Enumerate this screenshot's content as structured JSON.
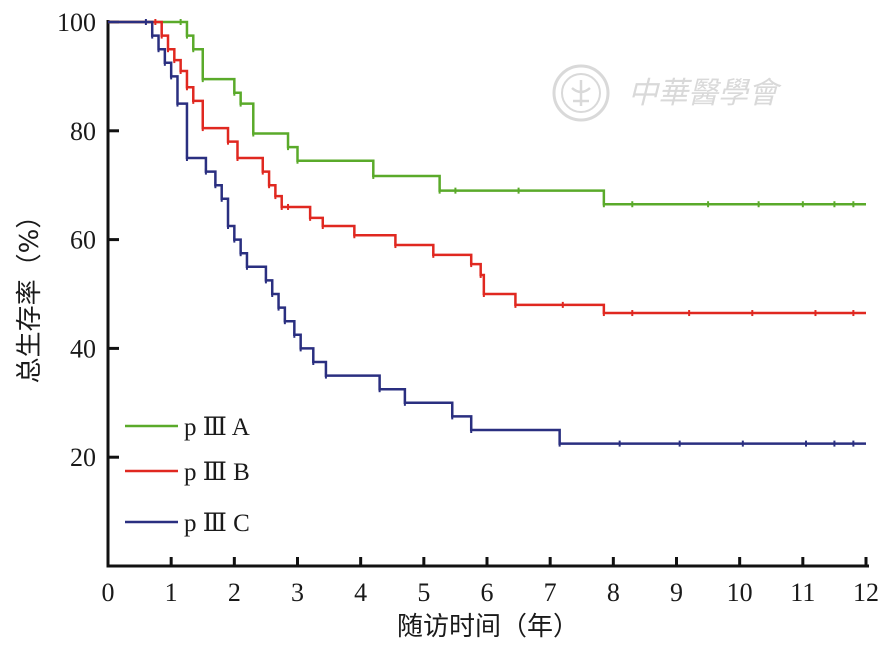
{
  "watermark": {
    "text": "中華醫學會"
  },
  "chart_data": {
    "type": "line",
    "title": "",
    "xlabel": "随访时间（年）",
    "ylabel": "总生存率（%）",
    "xlim": [
      0,
      12
    ],
    "ylim": [
      0,
      100
    ],
    "xticks": [
      0,
      1,
      2,
      3,
      4,
      5,
      6,
      7,
      8,
      9,
      10,
      11,
      12
    ],
    "yticks": [
      20,
      40,
      60,
      80,
      100
    ],
    "grid": false,
    "legend_position": "bottom-left",
    "series": [
      {
        "name": "p Ⅲ A",
        "color": "#5aaa2a",
        "x": [
          0,
          1.15,
          1.25,
          1.35,
          1.5,
          2.0,
          2.1,
          2.3,
          2.85,
          3.0,
          4.2,
          5.25,
          7.85,
          12
        ],
        "y": [
          100,
          100,
          97.5,
          95,
          89.5,
          87,
          85,
          79.5,
          77,
          74.5,
          71.7,
          69,
          66.5,
          66.5
        ],
        "censored": [
          [
            5.5,
            69
          ],
          [
            6.5,
            69
          ],
          [
            8.3,
            66.5
          ],
          [
            9.5,
            66.5
          ],
          [
            10.3,
            66.5
          ],
          [
            11,
            66.5
          ],
          [
            11.5,
            66.5
          ],
          [
            11.8,
            66.5
          ]
        ]
      },
      {
        "name": "p Ⅲ B",
        "color": "#e02820",
        "x": [
          0,
          0.75,
          0.85,
          0.95,
          1.05,
          1.15,
          1.25,
          1.35,
          1.5,
          1.9,
          2.05,
          2.45,
          2.55,
          2.65,
          2.75,
          2.85,
          3.2,
          3.4,
          3.9,
          4.55,
          5.15,
          5.75,
          5.9,
          5.95,
          6.45,
          7.85,
          12
        ],
        "y": [
          100,
          100,
          97.5,
          95,
          93,
          91,
          88,
          85.5,
          80.5,
          78,
          75,
          72.5,
          70,
          68,
          66,
          66,
          64,
          62.5,
          60.8,
          59,
          57.2,
          55.5,
          53.5,
          50,
          48,
          46.5,
          46.5
        ],
        "censored": [
          [
            7.2,
            48
          ],
          [
            8.3,
            46.5
          ],
          [
            9.2,
            46.5
          ],
          [
            10.2,
            46.5
          ],
          [
            11.2,
            46.5
          ],
          [
            11.8,
            46.5
          ]
        ]
      },
      {
        "name": "p Ⅲ C",
        "color": "#2a2f80",
        "x": [
          0,
          0.6,
          0.7,
          0.8,
          0.9,
          1.0,
          1.1,
          1.25,
          1.55,
          1.7,
          1.8,
          1.9,
          2.0,
          2.1,
          2.2,
          2.5,
          2.6,
          2.7,
          2.8,
          2.95,
          3.05,
          3.25,
          3.45,
          4.3,
          4.7,
          5.45,
          5.75,
          7.15,
          12
        ],
        "y": [
          100,
          100,
          97.5,
          95,
          92.5,
          90,
          85,
          75,
          72.5,
          70,
          67.5,
          62.5,
          60,
          57.5,
          55,
          52.5,
          50,
          47.5,
          45,
          42.5,
          40,
          37.5,
          35,
          32.5,
          30,
          27.5,
          25,
          22.5,
          22.5
        ],
        "censored": [
          [
            8.1,
            22.5
          ],
          [
            9.05,
            22.5
          ],
          [
            10.05,
            22.5
          ],
          [
            11.05,
            22.5
          ],
          [
            11.5,
            22.5
          ],
          [
            11.8,
            22.5
          ]
        ]
      }
    ]
  }
}
